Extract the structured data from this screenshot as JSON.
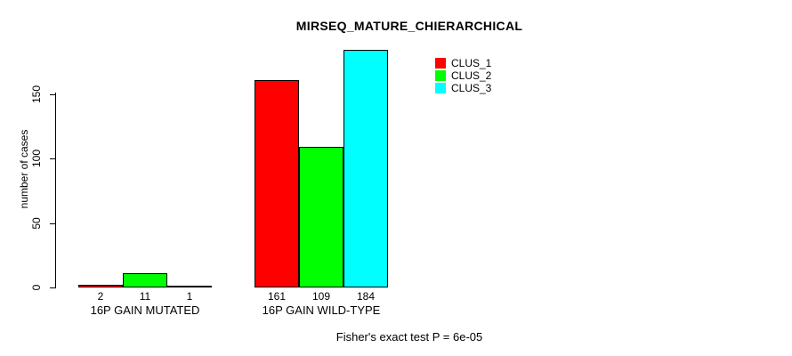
{
  "chart": {
    "title": "MIRSEQ_MATURE_CHIERARCHICAL",
    "ylabel": "number of cases",
    "footer": "Fisher's exact test P = 6e-05"
  },
  "legend": {
    "items": [
      {
        "label": "CLUS_1",
        "color": "#FF0000"
      },
      {
        "label": "CLUS_2",
        "color": "#00FF00"
      },
      {
        "label": "CLUS_3",
        "color": "#00FFFF"
      }
    ]
  },
  "chart_data": {
    "type": "bar",
    "title": "MIRSEQ_MATURE_CHIERARCHICAL",
    "xlabel": "",
    "ylabel": "number of cases",
    "categories": [
      "16P GAIN MUTATED",
      "16P GAIN WILD-TYPE"
    ],
    "series": [
      {
        "name": "CLUS_1",
        "color": "#FF0000",
        "values": [
          2,
          161
        ]
      },
      {
        "name": "CLUS_2",
        "color": "#00FF00",
        "values": [
          11,
          109
        ]
      },
      {
        "name": "CLUS_3",
        "color": "#00FFFF",
        "values": [
          1,
          184
        ]
      }
    ],
    "bar_value_labels": [
      [
        "2",
        "11",
        "1"
      ],
      [
        "161",
        "109",
        "184"
      ]
    ],
    "yticks": [
      0,
      50,
      100,
      150
    ],
    "ylim": [
      0,
      185
    ],
    "grid": false,
    "legend_position": "top-right",
    "annotation": "Fisher's exact test P = 6e-05"
  }
}
